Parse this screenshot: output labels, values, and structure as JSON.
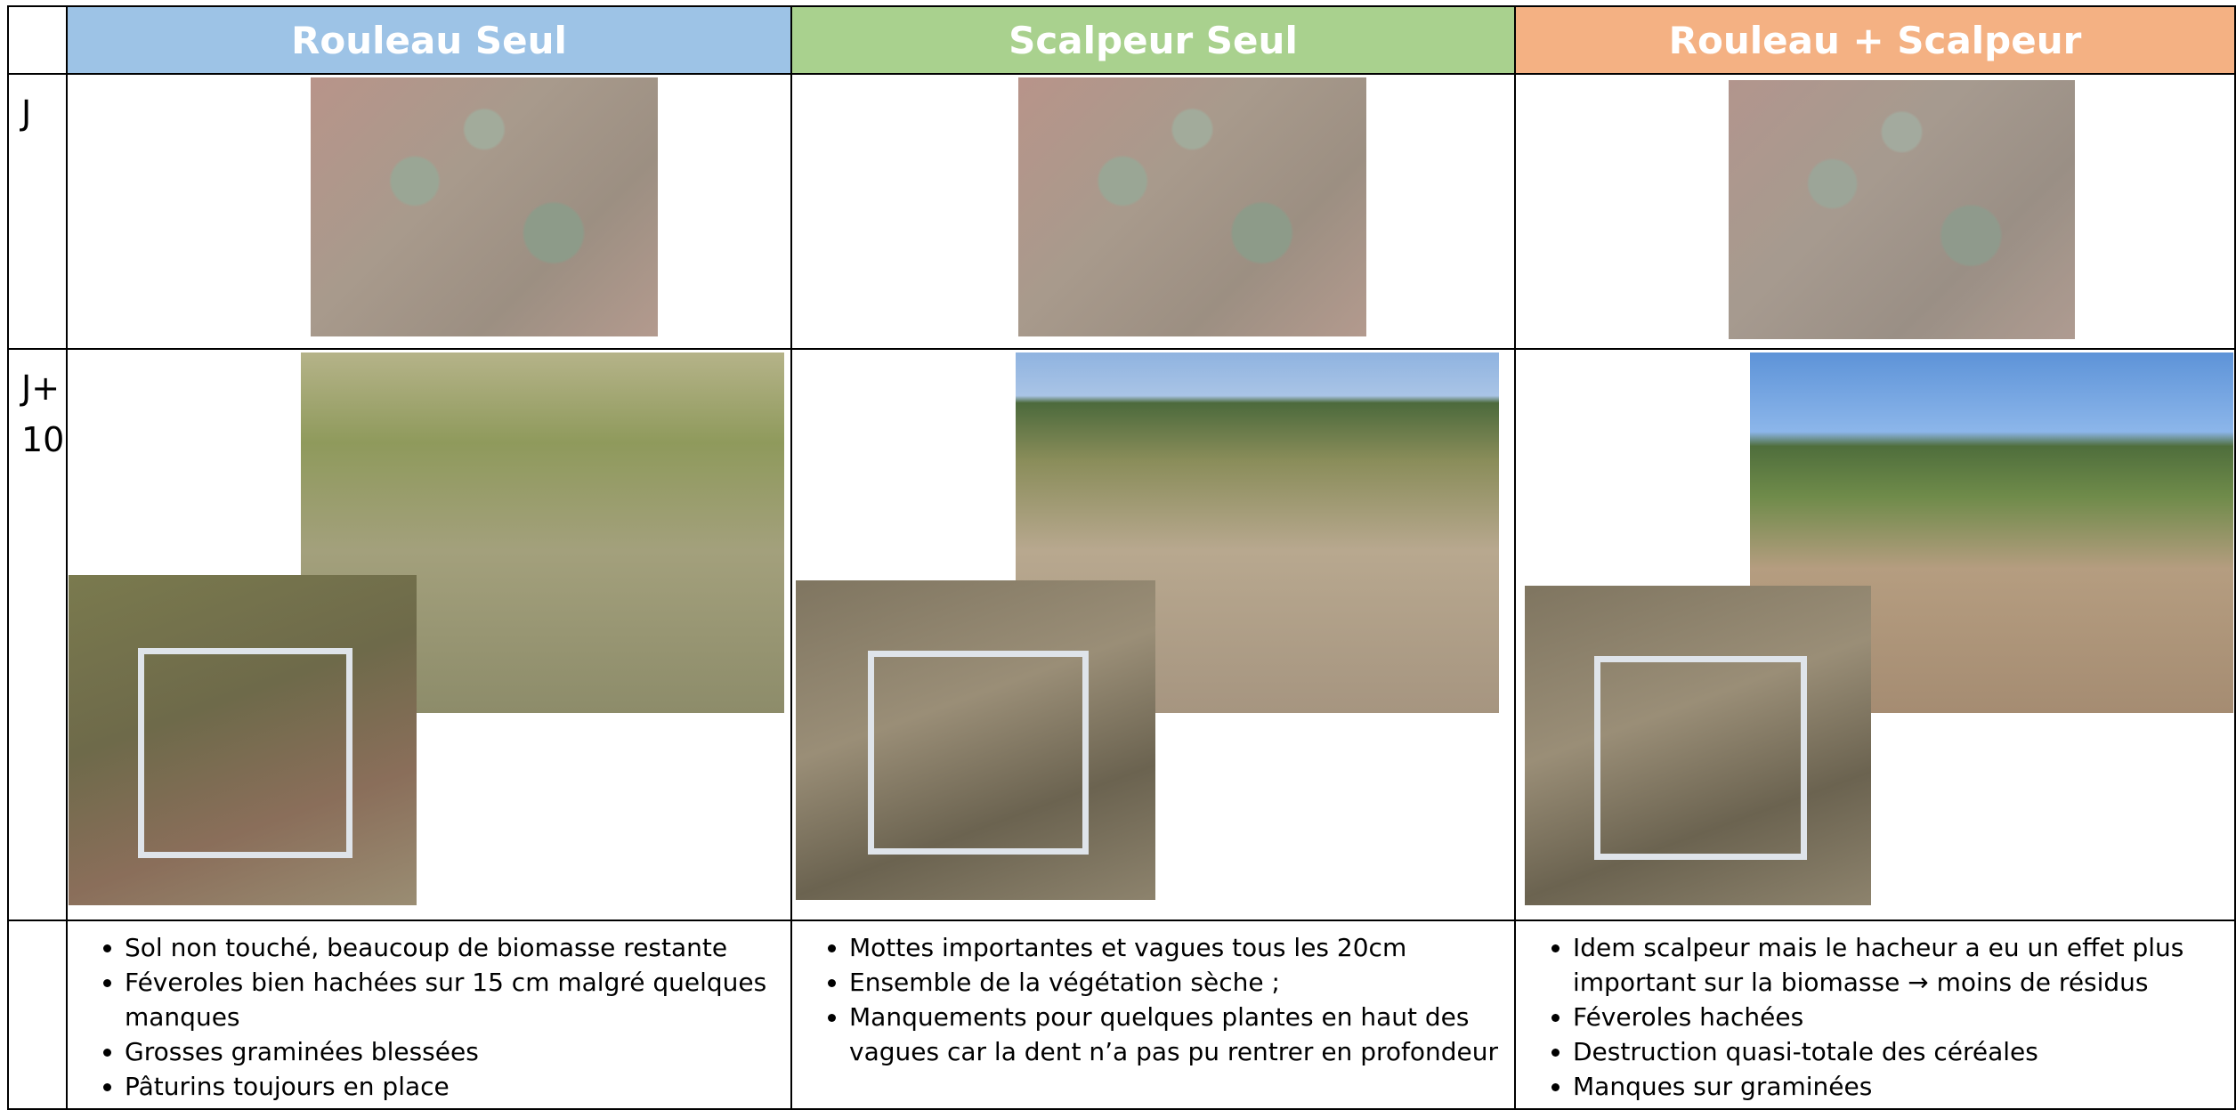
{
  "table": {
    "header": [
      "Rouleau Seul",
      "Scalpeur Seul",
      "Rouleau + Scalpeur"
    ],
    "row_labels": [
      "J",
      "J+10"
    ],
    "notes": [
      [
        "Sol non touché,  beaucoup de biomasse restante",
        "Féveroles bien hachées sur 15 cm malgré quelques manques",
        "Grosses graminées blessées",
        "Pâturins toujours en place"
      ],
      [
        "Mottes importantes et vagues tous les 20cm",
        "Ensemble de la végétation sèche ;",
        "Manquements pour quelques plantes en haut des vagues car la dent n’a pas pu rentrer en profondeur"
      ],
      [
        "Idem scalpeur mais le hacheur a eu un effet plus important sur la biomasse → moins de résidus",
        "Féveroles hachées",
        "Destruction quasi-totale des céréales",
        "Manques sur graminées"
      ]
    ]
  }
}
